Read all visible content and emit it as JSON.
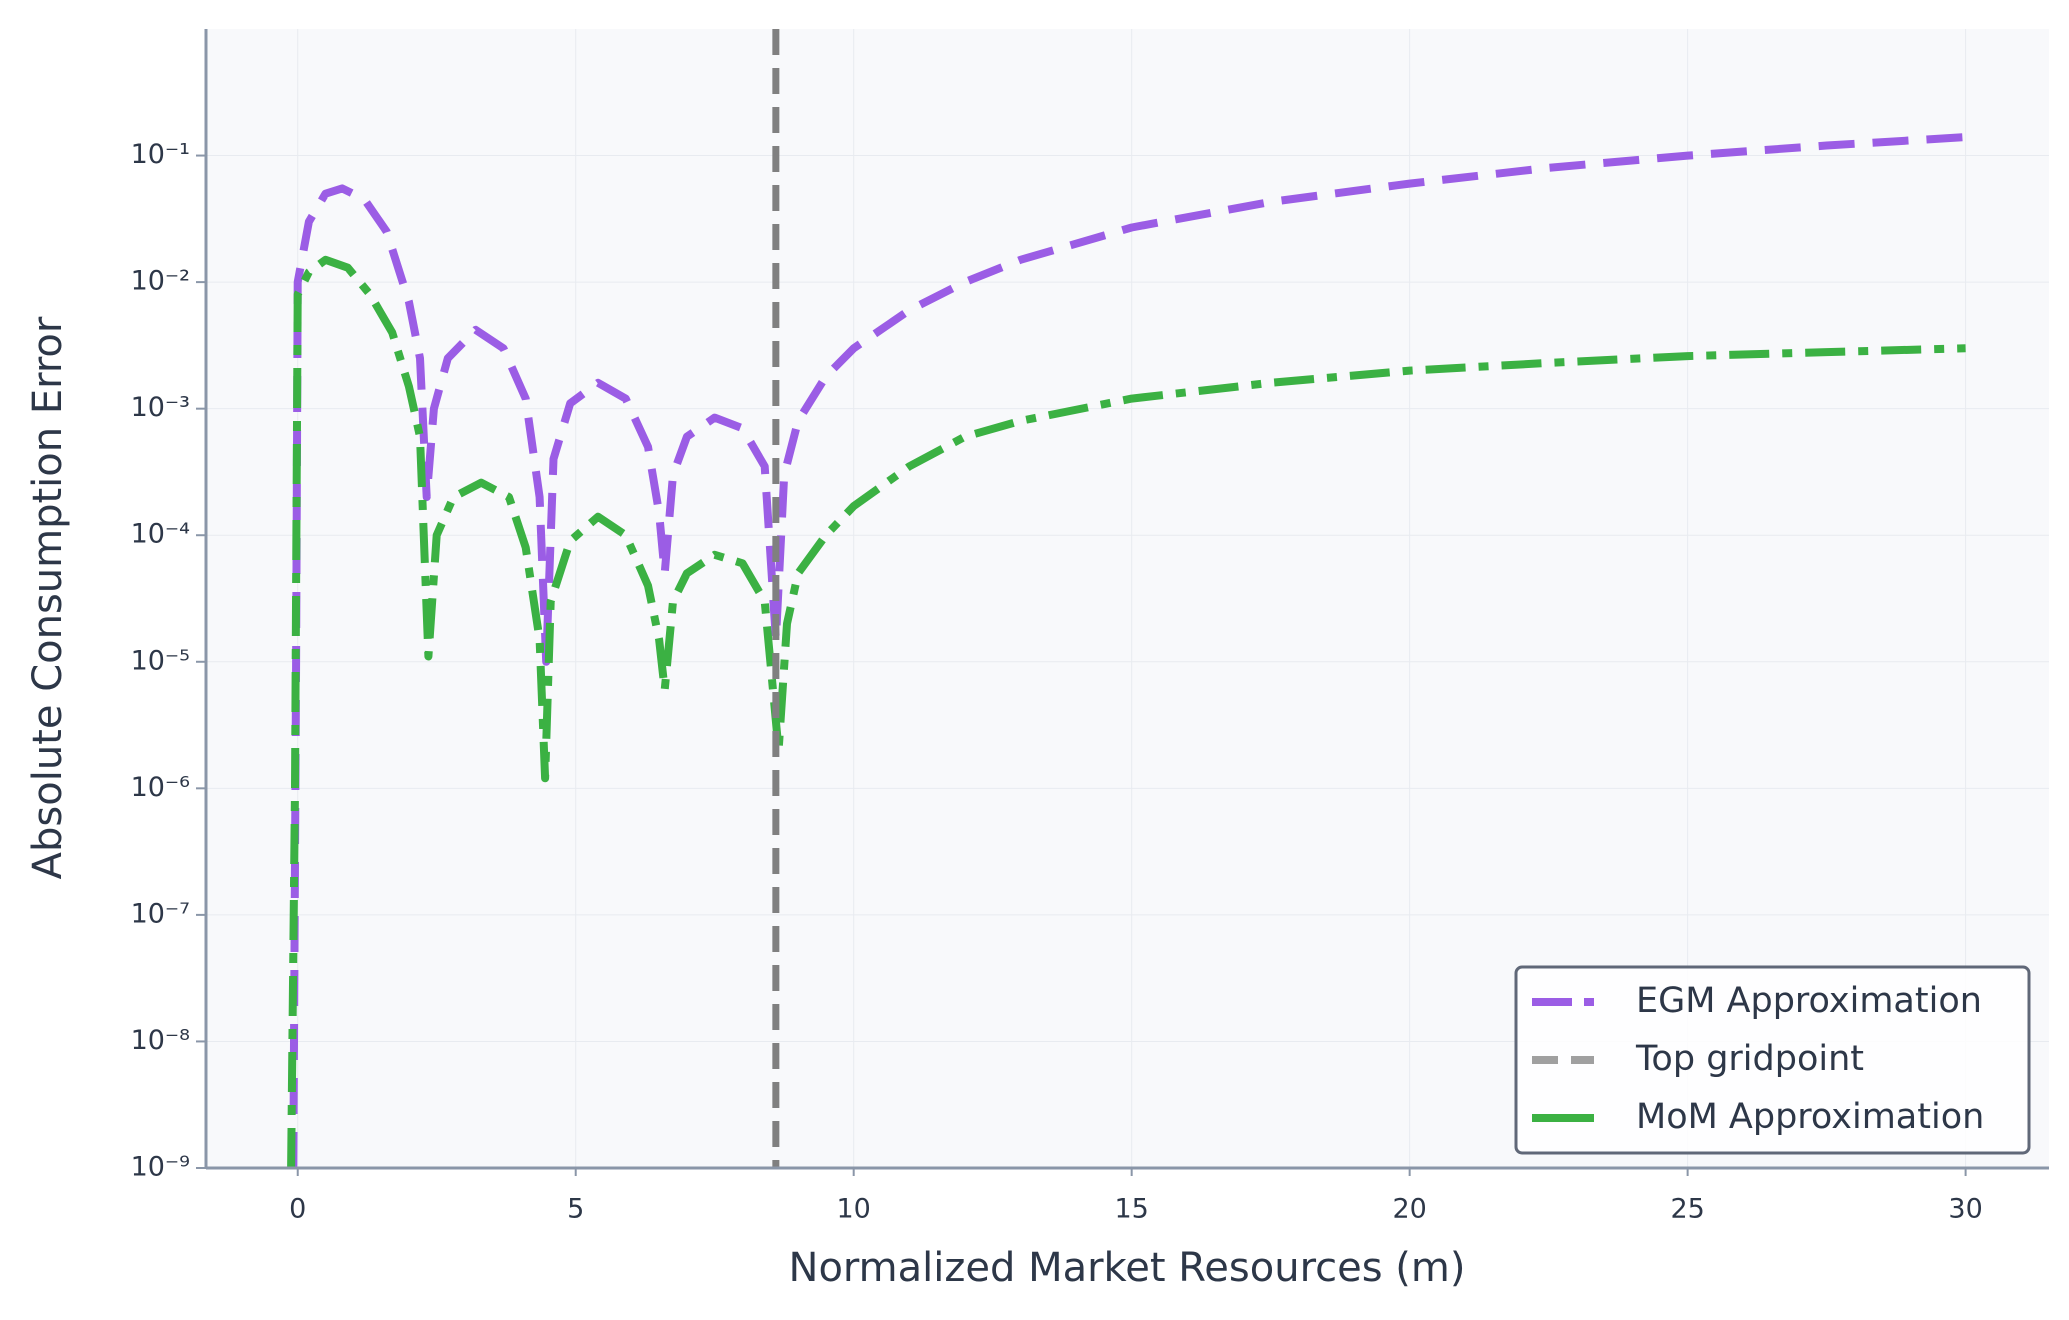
{
  "chart_data": {
    "type": "line",
    "x_label": "Normalized Market Resources (m)",
    "y_label": "Absolute Consumption Error",
    "log_y": true,
    "grid": true,
    "legend_position": "lower right",
    "xlim": [
      -1.65,
      31.5
    ],
    "ylim": [
      1e-09,
      1
    ],
    "xticks": [
      0,
      5,
      10,
      15,
      20,
      25,
      30
    ],
    "yticks": [
      {
        "value": 1e-09,
        "label": "10⁻⁹"
      },
      {
        "value": 1e-08,
        "label": "10⁻⁸"
      },
      {
        "value": 1e-07,
        "label": "10⁻⁷"
      },
      {
        "value": 1e-06,
        "label": "10⁻⁶"
      },
      {
        "value": 1e-05,
        "label": "10⁻⁵"
      },
      {
        "value": 0.0001,
        "label": "10⁻⁴"
      },
      {
        "value": 0.001,
        "label": "10⁻³"
      },
      {
        "value": 0.01,
        "label": "10⁻²"
      },
      {
        "value": 0.1,
        "label": "10⁻¹"
      }
    ],
    "series": [
      {
        "name": "EGM Approximation",
        "color": "#9b5de5",
        "style": "dashed",
        "x": [
          -0.08,
          -0.03,
          0,
          0.2,
          0.5,
          0.8,
          1.2,
          1.6,
          2.0,
          2.2,
          2.32,
          2.45,
          2.7,
          3.2,
          3.7,
          4.1,
          4.35,
          4.47,
          4.6,
          4.9,
          5.4,
          5.9,
          6.3,
          6.5,
          6.6,
          6.75,
          7.0,
          7.5,
          8.0,
          8.4,
          8.6,
          8.75,
          9.0,
          9.5,
          10,
          11,
          12,
          13,
          15,
          17.5,
          20,
          22.5,
          25,
          27.5,
          30
        ],
        "values": [
          1e-09,
          1e-05,
          0.01,
          0.03,
          0.05,
          0.055,
          0.045,
          0.025,
          0.007,
          0.0025,
          0.0002,
          0.001,
          0.0025,
          0.0042,
          0.003,
          0.0012,
          0.0002,
          1e-05,
          0.0004,
          0.0011,
          0.0016,
          0.0012,
          0.0005,
          0.00015,
          5e-05,
          0.0003,
          0.0006,
          0.00085,
          0.0007,
          0.00035,
          1.5e-05,
          0.0003,
          0.0008,
          0.0018,
          0.003,
          0.006,
          0.01,
          0.015,
          0.027,
          0.043,
          0.06,
          0.08,
          0.1,
          0.12,
          0.14
        ]
      },
      {
        "name": "Top gridpoint",
        "color": "#808080",
        "style": "dashed",
        "vline": 8.6
      },
      {
        "name": "MoM Approximation",
        "color": "#3bb143",
        "style": "dashdot",
        "x": [
          -0.12,
          -0.05,
          0,
          0.2,
          0.5,
          0.9,
          1.3,
          1.7,
          2.0,
          2.2,
          2.35,
          2.5,
          2.8,
          3.3,
          3.8,
          4.1,
          4.35,
          4.45,
          4.55,
          4.9,
          5.4,
          5.9,
          6.3,
          6.5,
          6.6,
          6.75,
          7.0,
          7.5,
          8.0,
          8.4,
          8.65,
          8.8,
          9.0,
          9.5,
          10,
          11,
          12,
          13,
          15,
          17.5,
          20,
          22.5,
          25,
          27.5,
          30
        ],
        "values": [
          1e-09,
          1e-06,
          0.008,
          0.012,
          0.015,
          0.013,
          0.008,
          0.004,
          0.0015,
          0.0006,
          1.1e-05,
          0.0001,
          0.0002,
          0.00026,
          0.0002,
          8e-05,
          1.5e-05,
          1.2e-06,
          3e-05,
          9e-05,
          0.00014,
          0.0001,
          4e-05,
          1.5e-05,
          6e-06,
          3e-05,
          5e-05,
          7e-05,
          6e-05,
          3e-05,
          2e-06,
          2e-05,
          5e-05,
          0.0001,
          0.00017,
          0.00035,
          0.0006,
          0.0008,
          0.0012,
          0.0016,
          0.002,
          0.0023,
          0.0026,
          0.0028,
          0.003
        ]
      }
    ]
  }
}
